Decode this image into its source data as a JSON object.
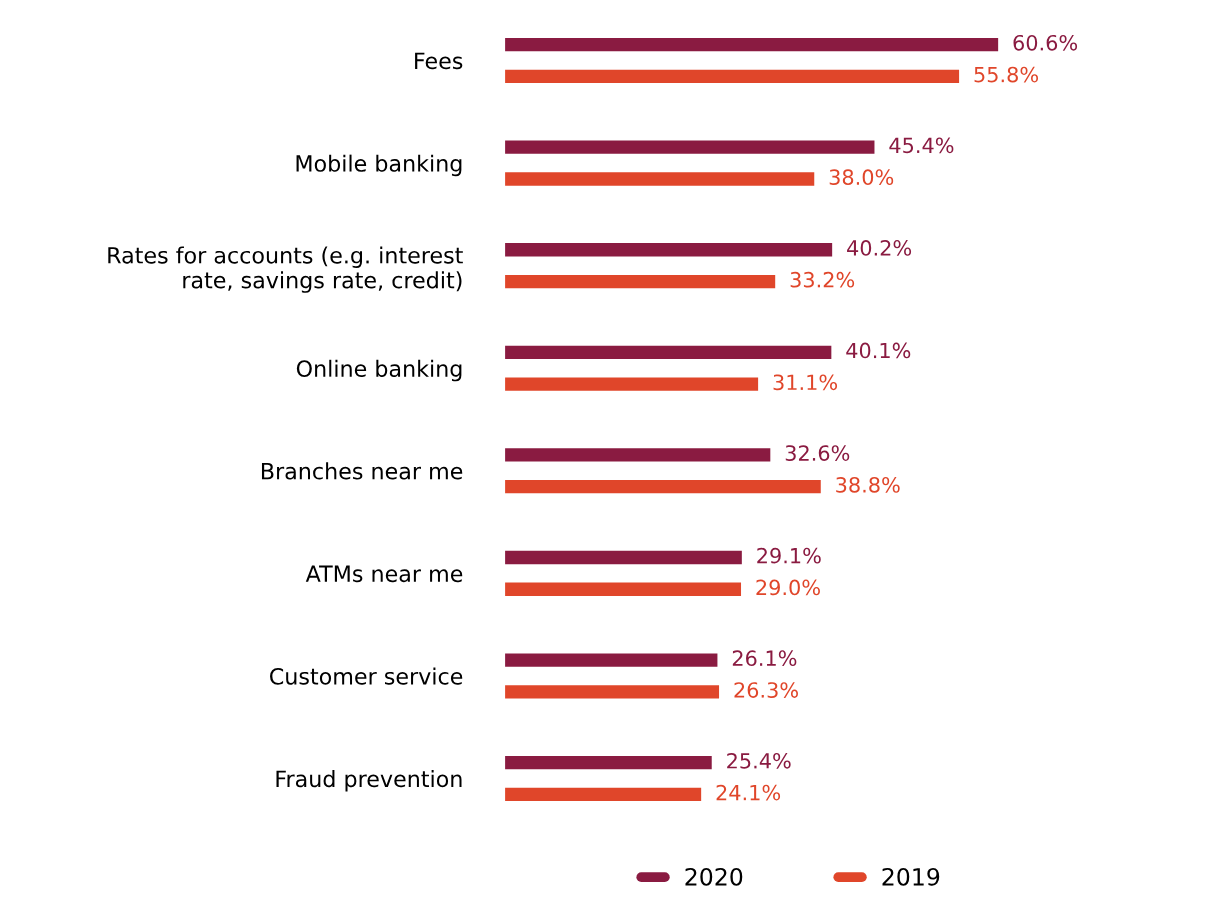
{
  "chart_data": {
    "type": "bar",
    "orientation": "horizontal",
    "categories": [
      "Fees",
      "Mobile banking",
      "Rates for accounts (e.g. interest\nrate, savings rate, credit)",
      "Online banking",
      "Branches near me",
      "ATMs near me",
      "Customer service",
      "Fraud prevention"
    ],
    "series": [
      {
        "name": "2020",
        "color": "#8a1b41",
        "values": [
          60.6,
          45.4,
          40.2,
          40.1,
          32.6,
          29.1,
          26.1,
          25.4
        ],
        "value_labels": [
          "60.6%",
          "45.4%",
          "40.2%",
          "40.1%",
          "32.6%",
          "29.1%",
          "26.1%",
          "25.4%"
        ]
      },
      {
        "name": "2019",
        "color": "#e0462a",
        "values": [
          55.8,
          38.0,
          33.2,
          31.1,
          38.8,
          29.0,
          26.3,
          24.1
        ],
        "value_labels": [
          "55.8%",
          "38.0%",
          "33.2%",
          "31.1%",
          "38.8%",
          "29.0%",
          "26.3%",
          "24.1%"
        ]
      }
    ],
    "legend": "bottom",
    "grid": false
  }
}
